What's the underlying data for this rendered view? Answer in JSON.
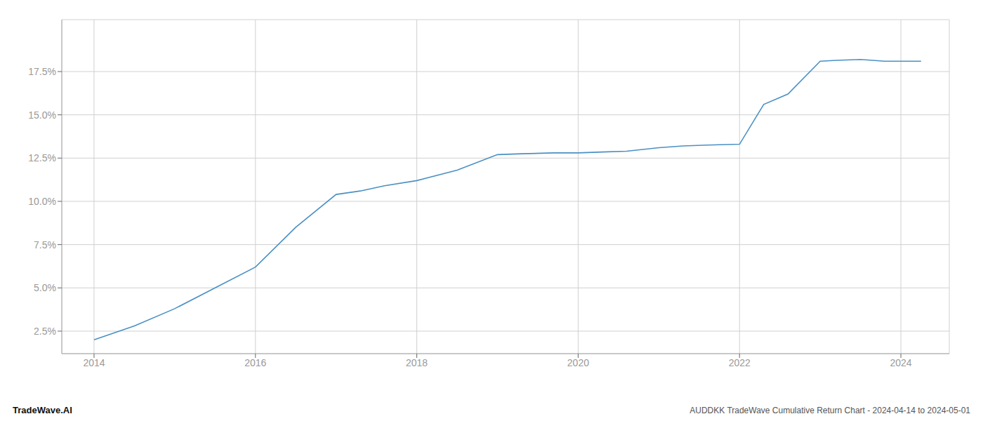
{
  "chart_data": {
    "type": "line",
    "title": "AUDDKK TradeWave Cumulative Return Chart - 2024-04-14 to 2024-05-01",
    "annotations": [
      "TradeWave.AI"
    ],
    "x": [
      2014.0,
      2014.5,
      2015.0,
      2015.5,
      2016.0,
      2016.5,
      2017.0,
      2017.3,
      2017.6,
      2018.0,
      2018.5,
      2019.0,
      2019.3,
      2019.7,
      2020.0,
      2020.3,
      2020.6,
      2021.0,
      2021.3,
      2021.6,
      2022.0,
      2022.3,
      2022.6,
      2023.0,
      2023.2,
      2023.5,
      2023.8,
      2024.0,
      2024.25
    ],
    "values": [
      2.0,
      2.8,
      3.8,
      5.0,
      6.2,
      8.5,
      10.4,
      10.6,
      10.9,
      11.2,
      11.8,
      12.7,
      12.75,
      12.8,
      12.8,
      12.85,
      12.9,
      13.1,
      13.2,
      13.25,
      13.3,
      15.6,
      16.2,
      18.1,
      18.15,
      18.2,
      18.1,
      18.1,
      18.1
    ],
    "color": "#4a90c4",
    "xlim": [
      2013.6,
      2024.6
    ],
    "ylim": [
      1.2,
      20.5
    ],
    "xticks": [
      2014,
      2016,
      2018,
      2020,
      2022,
      2024
    ],
    "yticks": [
      {
        "value": 2.5,
        "label": "2.5%"
      },
      {
        "value": 5.0,
        "label": "5.0%"
      },
      {
        "value": 7.5,
        "label": "7.5%"
      },
      {
        "value": 10.0,
        "label": "10.0%"
      },
      {
        "value": 12.5,
        "label": "12.5%"
      },
      {
        "value": 15.0,
        "label": "15.0%"
      },
      {
        "value": 17.5,
        "label": "17.5%"
      }
    ],
    "grid": true
  }
}
